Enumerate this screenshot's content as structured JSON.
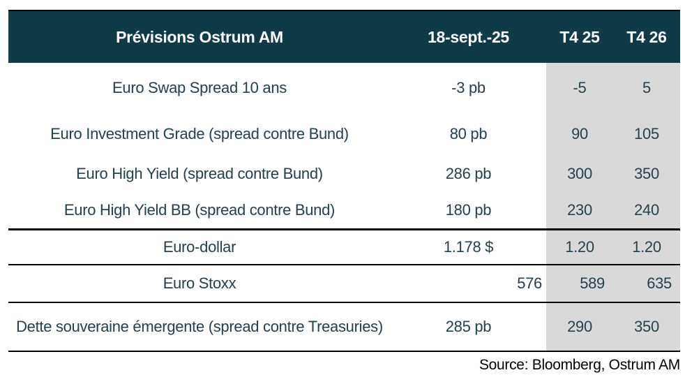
{
  "chart_data": {
    "type": "table",
    "title": "Prévisions Ostrum AM",
    "header": [
      "Prévisions Ostrum AM",
      "18-sept.-25",
      "T4 25",
      "T4 26"
    ],
    "rows": [
      [
        "Euro Swap Spread 10 ans",
        "-3 pb",
        "-5",
        "5"
      ],
      [
        "Euro Investment Grade (spread contre Bund)",
        "80 pb",
        "90",
        "105"
      ],
      [
        "Euro High Yield (spread contre Bund)",
        "286 pb",
        "300",
        "350"
      ],
      [
        "Euro High Yield BB (spread contre Bund)",
        "180 pb",
        "230",
        "240"
      ],
      [
        "Euro-dollar",
        "1.178 $",
        "1.20",
        "1.20"
      ],
      [
        "Euro Stoxx",
        "576",
        "589",
        "635"
      ],
      [
        "Dette souveraine émergente (spread contre Treasuries)",
        "285 pb",
        "290",
        "350"
      ]
    ],
    "source": "Source: Bloomberg, Ostrum AM",
    "layout_hints": {
      "shaded_columns": [
        "T4 25",
        "T4 26"
      ],
      "shaded_column_bg": "#d9d9d9",
      "header_bg": "#0d3b46",
      "header_text_color": "#ffffff",
      "body_text_color": "#25404e",
      "rule_color": "#000000",
      "right_aligned_row": "Euro Stoxx"
    }
  }
}
